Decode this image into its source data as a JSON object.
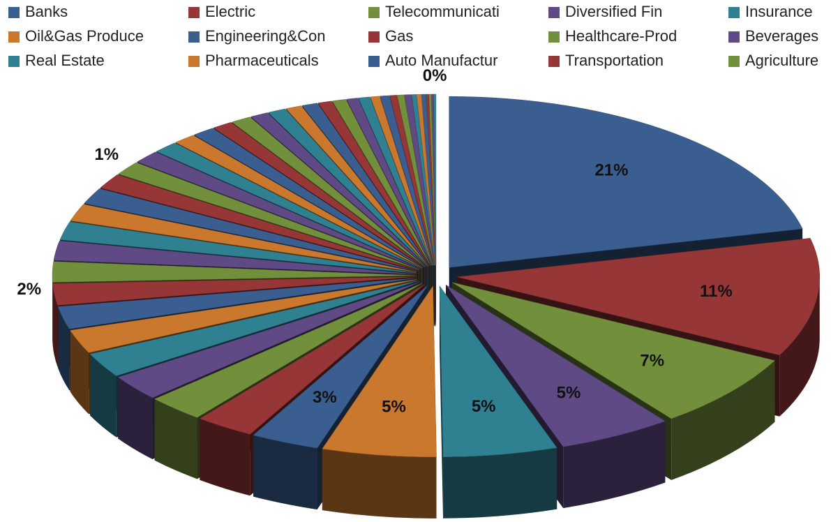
{
  "chart_data": {
    "type": "pie",
    "three_d": true,
    "exploded": true,
    "palette": [
      "#3a5e8f",
      "#963636",
      "#728f3c",
      "#604a85",
      "#2f8091",
      "#c9782d"
    ],
    "categories": [
      "Banks",
      "Electric",
      "Telecommunicati",
      "Diversified Fin",
      "Insurance",
      "Oil&Gas Produce",
      "Engineering&Con",
      "Gas",
      "Healthcare-Prod",
      "Beverages",
      "Real Estate",
      "Pharmaceuticals",
      "Auto Manufactur",
      "Transportation",
      "Agriculture",
      null,
      null,
      null,
      null,
      null,
      null,
      null,
      null,
      null,
      null,
      null,
      null,
      null,
      null,
      null,
      null,
      null,
      null,
      null,
      null,
      null,
      null,
      null,
      null,
      null,
      null,
      null,
      null,
      null,
      null,
      null,
      null
    ],
    "values": [
      21,
      11,
      7,
      5,
      5,
      5,
      3,
      2.6,
      2.5,
      2.4,
      2.3,
      2.2,
      2.1,
      2.0,
      1.9,
      1.8,
      1.7,
      1.6,
      1.5,
      1.4,
      1.3,
      1.2,
      1.1,
      1.0,
      1.0,
      0.9,
      0.9,
      0.8,
      0.8,
      0.7,
      0.7,
      0.6,
      0.6,
      0.5,
      0.5,
      0.4,
      0.4,
      0.3,
      0.3,
      0.3,
      0.2,
      0.2,
      0.2,
      0.1,
      0.1,
      0.1,
      0.1
    ],
    "value_labels": [
      "21%",
      "11%",
      "7%",
      "5%",
      "5%",
      "5%",
      "3%",
      null,
      null,
      null,
      null,
      null,
      null,
      "2%",
      null,
      null,
      null,
      null,
      null,
      null,
      "1%",
      null,
      null,
      null,
      null,
      null,
      null,
      null,
      null,
      null,
      null,
      null,
      null,
      null,
      null,
      null,
      null,
      null,
      null,
      null,
      null,
      null,
      null,
      null,
      null,
      null,
      "0%"
    ]
  }
}
